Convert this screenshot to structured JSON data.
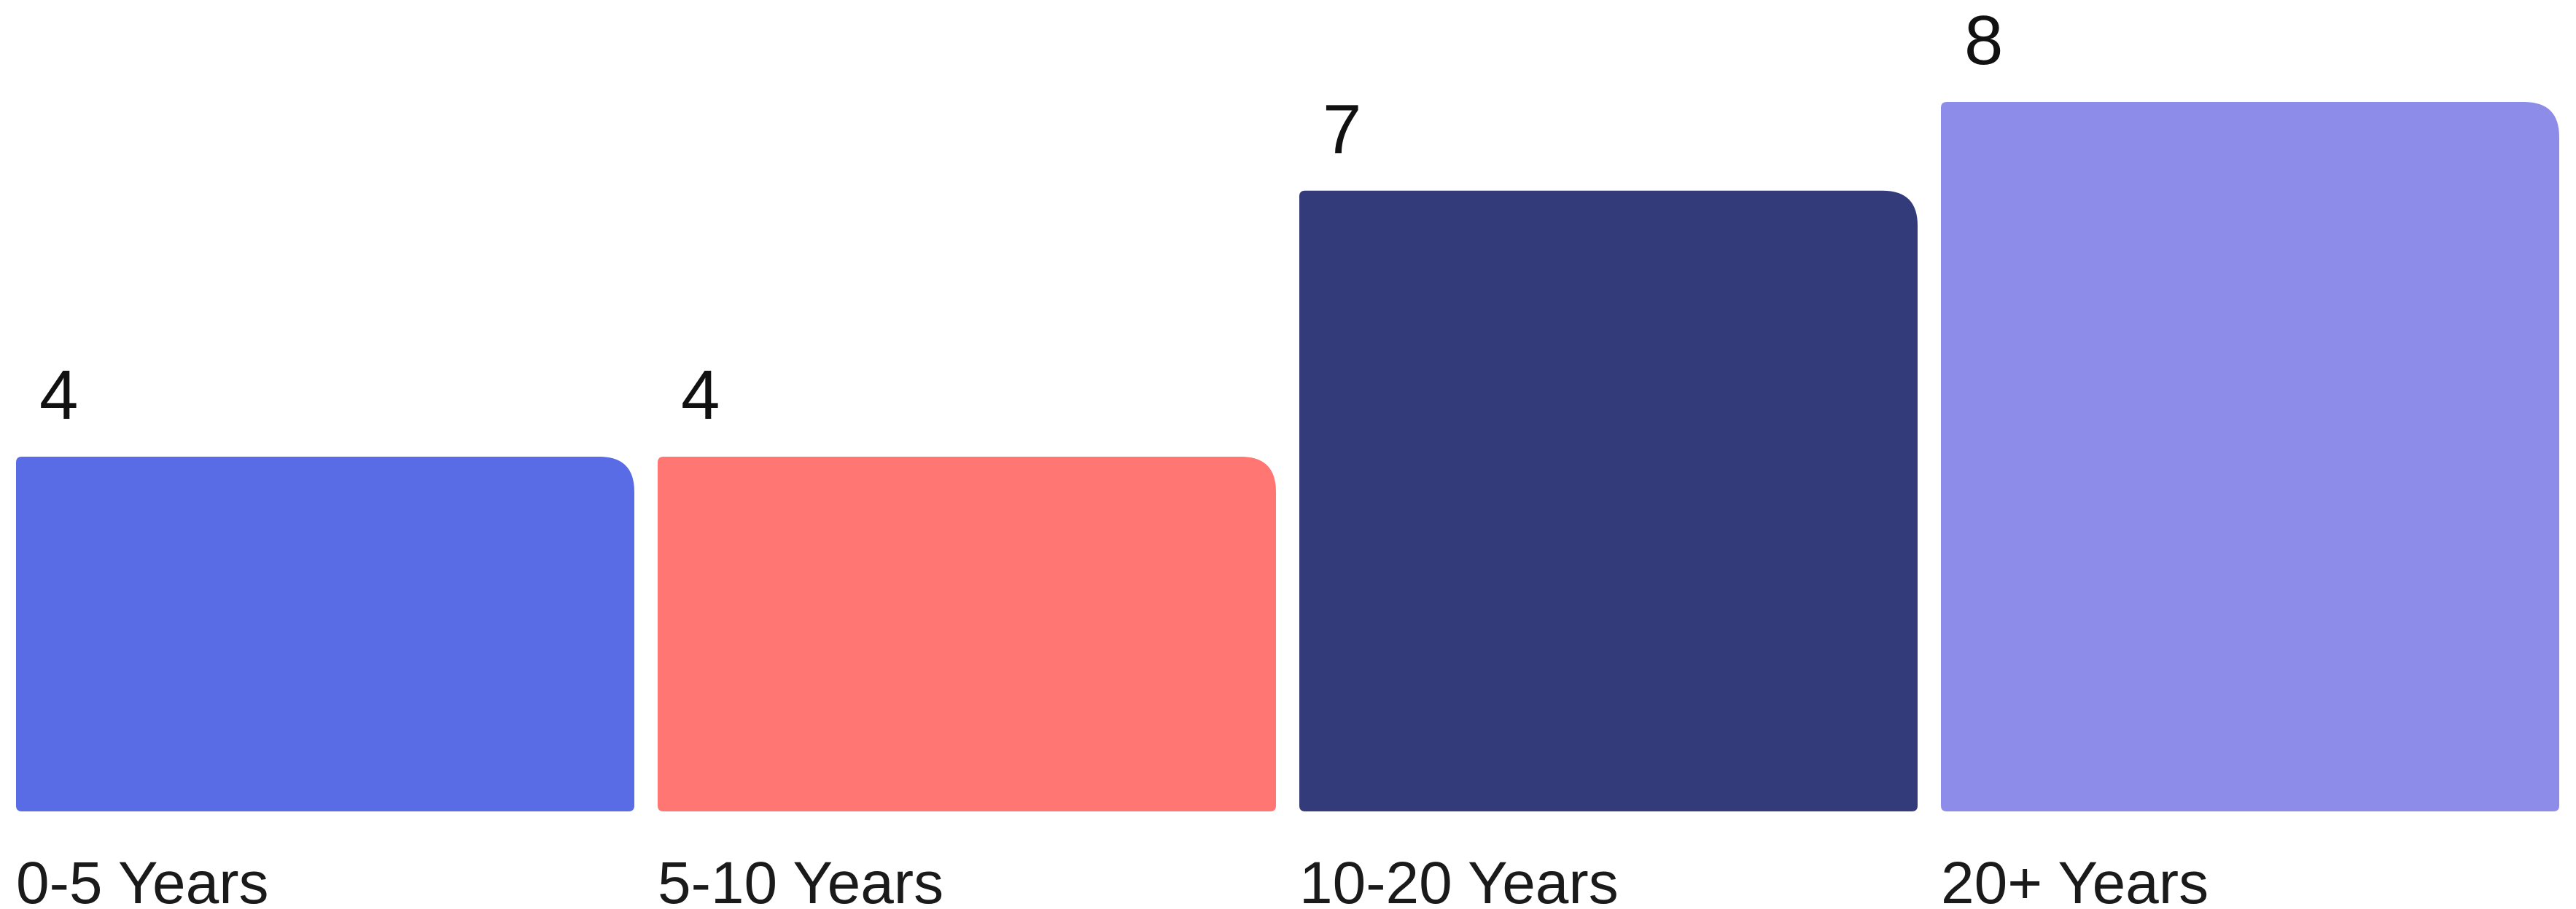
{
  "chart_data": {
    "type": "bar",
    "categories": [
      "0-5 Years",
      "5-10 Years",
      "10-20 Years",
      "20+ Years"
    ],
    "values": [
      4,
      4,
      7,
      8
    ],
    "colors": [
      "#5A6BE6",
      "#FF7673",
      "#333B7B",
      "#8D8DE9"
    ],
    "ylim": [
      0,
      8.5
    ],
    "grid": false,
    "legend": "none",
    "title": "",
    "xlabel": "",
    "ylabel": ""
  }
}
